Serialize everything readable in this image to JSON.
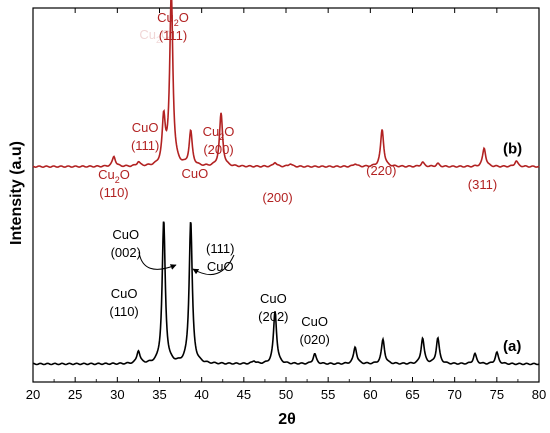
{
  "chart_data": {
    "type": "line",
    "xlabel": "2θ",
    "ylabel": "Intensity (a.u)",
    "xlim": [
      20,
      80
    ],
    "xticks": [
      20,
      25,
      30,
      35,
      40,
      45,
      50,
      55,
      60,
      65,
      70,
      75,
      80
    ],
    "yticks_shown": false,
    "series": [
      {
        "name": "(a)",
        "color": "#000000",
        "baseline": 0.0,
        "peaks": [
          {
            "x": 32.5,
            "h": 0.09
          },
          {
            "x": 35.5,
            "h": 1.0
          },
          {
            "x": 38.7,
            "h": 1.0
          },
          {
            "x": 46.2,
            "h": 0.02
          },
          {
            "x": 48.7,
            "h": 0.37
          },
          {
            "x": 53.4,
            "h": 0.07
          },
          {
            "x": 58.2,
            "h": 0.12
          },
          {
            "x": 61.5,
            "h": 0.17
          },
          {
            "x": 66.2,
            "h": 0.18
          },
          {
            "x": 68.0,
            "h": 0.18
          },
          {
            "x": 72.4,
            "h": 0.07
          },
          {
            "x": 75.0,
            "h": 0.08
          }
        ]
      },
      {
        "name": "(b)",
        "color": "#b22222",
        "baseline": 1.38,
        "peaks": [
          {
            "x": 29.6,
            "h": 0.07
          },
          {
            "x": 32.5,
            "h": 0.03
          },
          {
            "x": 35.5,
            "h": 0.32
          },
          {
            "x": 36.4,
            "h": 1.21
          },
          {
            "x": 38.7,
            "h": 0.24
          },
          {
            "x": 42.3,
            "h": 0.37
          },
          {
            "x": 48.7,
            "h": 0.03
          },
          {
            "x": 50.5,
            "h": 0.02
          },
          {
            "x": 58.2,
            "h": 0.02
          },
          {
            "x": 61.4,
            "h": 0.26
          },
          {
            "x": 66.2,
            "h": 0.03
          },
          {
            "x": 68.0,
            "h": 0.02
          },
          {
            "x": 73.5,
            "h": 0.13
          },
          {
            "x": 77.3,
            "h": 0.04
          }
        ]
      }
    ],
    "annotations": [
      {
        "id": "cu2o-110",
        "lines": [
          "Cu|2|O",
          "(110)"
        ],
        "color": "#b22222",
        "x": 29.6
      },
      {
        "id": "cuo-111-b",
        "lines": [
          "CuO",
          "(111)"
        ],
        "color": "#b22222",
        "x": 33.3
      },
      {
        "id": "cu2o-111",
        "lines": [
          "Cu|2|O",
          "(111)"
        ],
        "color": "#b22222",
        "x": 36.6
      },
      {
        "id": "cu2o-ghost",
        "lines": [
          "Cu|2|O"
        ],
        "color": "#b22222",
        "x": 34.5
      },
      {
        "id": "cuo-b",
        "lines": [
          "CuO"
        ],
        "color": "#b22222",
        "x": 39.2
      },
      {
        "id": "cu2o-200",
        "lines": [
          "Cu|2|O",
          "(200)"
        ],
        "color": "#b22222",
        "x": 42.0
      },
      {
        "id": "hkl-200-b",
        "lines": [
          "(200)"
        ],
        "color": "#b22222",
        "x": 49.0
      },
      {
        "id": "hkl-220",
        "lines": [
          "(220)"
        ],
        "color": "#b22222",
        "x": 61.3
      },
      {
        "id": "hkl-311",
        "lines": [
          "(311)"
        ],
        "color": "#b22222",
        "x": 73.3
      },
      {
        "id": "cuo-002",
        "lines": [
          "CuO",
          "(002)"
        ],
        "color": "#000000",
        "x": 31.0
      },
      {
        "id": "cuo-111-a",
        "lines": [
          "(111)",
          "CuO"
        ],
        "color": "#000000",
        "x": 42.2
      },
      {
        "id": "cuo-110",
        "lines": [
          "CuO",
          "(110)"
        ],
        "color": "#000000",
        "x": 30.8
      },
      {
        "id": "cuo-202",
        "lines": [
          "CuO",
          "(202)"
        ],
        "color": "#000000",
        "x": 48.5
      },
      {
        "id": "cuo-020",
        "lines": [
          "CuO",
          "(020)"
        ],
        "color": "#000000",
        "x": 53.4
      }
    ]
  }
}
